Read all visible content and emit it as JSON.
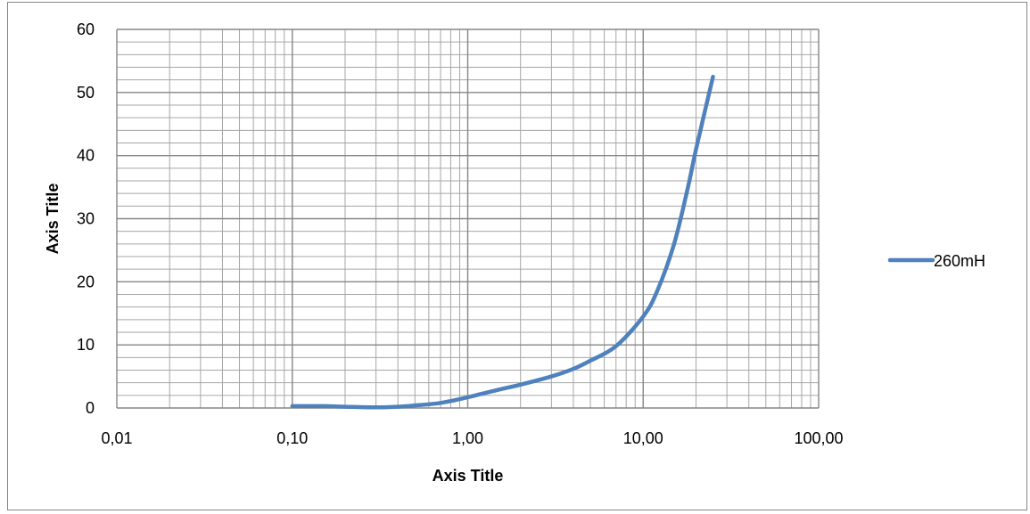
{
  "chart_data": {
    "type": "line",
    "x_scale": "log",
    "xlim": [
      0.01,
      100
    ],
    "ylim": [
      0,
      60
    ],
    "x_ticks": [
      0.01,
      0.1,
      1,
      10,
      100
    ],
    "x_tick_labels": [
      "0,01",
      "0,10",
      "1,00",
      "10,00",
      "100,00"
    ],
    "y_ticks": [
      0,
      10,
      20,
      30,
      40,
      50,
      60
    ],
    "y_tick_labels": [
      "0",
      "10",
      "20",
      "30",
      "40",
      "50",
      "60"
    ],
    "xlabel": "Axis Title",
    "ylabel": "Axis Title",
    "grid": true,
    "legend_position": "right",
    "series": [
      {
        "name": "260mH",
        "color": "#4f81bd",
        "x": [
          0.1,
          0.15,
          0.2,
          0.3,
          0.4,
          0.5,
          0.7,
          1.0,
          1.5,
          2,
          3,
          4,
          5,
          7,
          10,
          12,
          15,
          18,
          20,
          25
        ],
        "y": [
          0.3,
          0.3,
          0.2,
          0.1,
          0.2,
          0.4,
          0.8,
          1.7,
          2.9,
          3.7,
          5.0,
          6.2,
          7.5,
          9.8,
          14.5,
          18.5,
          26,
          35,
          41,
          52.5
        ]
      }
    ]
  }
}
